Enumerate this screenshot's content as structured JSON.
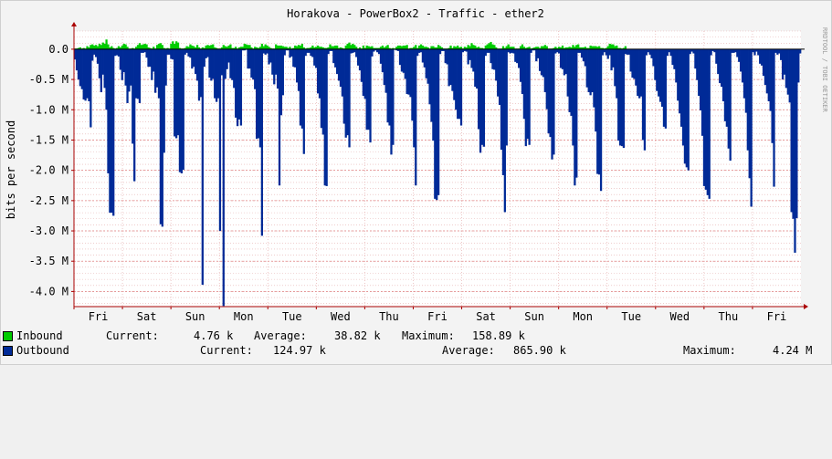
{
  "chart_data": {
    "type": "area",
    "title": "Horakova - PowerBox2 - Traffic - ether2",
    "ylabel": "bits per second",
    "watermark": "RRDTOOL / TOBI OETIKER",
    "ylim": [
      -4250000,
      300000
    ],
    "yticks": [
      {
        "value": 0,
        "label": "0.0"
      },
      {
        "value": -500000,
        "label": "-0.5 M"
      },
      {
        "value": -1000000,
        "label": "-1.0 M"
      },
      {
        "value": -1500000,
        "label": "-1.5 M"
      },
      {
        "value": -2000000,
        "label": "-2.0 M"
      },
      {
        "value": -2500000,
        "label": "-2.5 M"
      },
      {
        "value": -3000000,
        "label": "-3.0 M"
      },
      {
        "value": -3500000,
        "label": "-3.5 M"
      },
      {
        "value": -4000000,
        "label": "-4.0 M"
      }
    ],
    "x_range_days": [
      0,
      15
    ],
    "xticks": [
      {
        "day": 0.5,
        "label": "Fri"
      },
      {
        "day": 1.5,
        "label": "Sat"
      },
      {
        "day": 2.5,
        "label": "Sun"
      },
      {
        "day": 3.5,
        "label": "Mon"
      },
      {
        "day": 4.5,
        "label": "Tue"
      },
      {
        "day": 5.5,
        "label": "Wed"
      },
      {
        "day": 6.5,
        "label": "Thu"
      },
      {
        "day": 7.5,
        "label": "Fri"
      },
      {
        "day": 8.5,
        "label": "Sat"
      },
      {
        "day": 9.5,
        "label": "Sun"
      },
      {
        "day": 10.5,
        "label": "Mon"
      },
      {
        "day": 11.5,
        "label": "Tue"
      },
      {
        "day": 12.5,
        "label": "Wed"
      },
      {
        "day": 13.5,
        "label": "Thu"
      },
      {
        "day": 14.5,
        "label": "Fri"
      }
    ],
    "colors": {
      "inbound": "#00cc00",
      "outbound": "#002a97",
      "grid": "#e6b0b0",
      "axis": "#aa0000"
    },
    "series": [
      {
        "name": "Inbound",
        "values": [
          0.01,
          0.01,
          0.02,
          0.03,
          0.01,
          0.02,
          0.01,
          0.05,
          0.03,
          0.07,
          0.08,
          0.06,
          0.07,
          0.05,
          0.09,
          0.07,
          0.11,
          0.09,
          0.16,
          0.08,
          0.03,
          0.05,
          0.02,
          0.01,
          0.02,
          0.05,
          0.03,
          0.06,
          0.09,
          0.08,
          0.04,
          0.01,
          0.01,
          0.02,
          0.01,
          0.04,
          0.07,
          0.1,
          0.07,
          0.08,
          0.09,
          0.08,
          0.03,
          0.02,
          0.01,
          0.04,
          0.01,
          0.07,
          0.09,
          0.1,
          0.07,
          0.02,
          0.01,
          0.02,
          0.01,
          0.09,
          0.13,
          0.09,
          0.13,
          0.11,
          0.02,
          0.01,
          0.01,
          0.02,
          0.05,
          0.04,
          0.08,
          0.06,
          0.05,
          0.03,
          0.07,
          0.03,
          0.01,
          0.03,
          0.02,
          0.06,
          0.07,
          0.06,
          0.07,
          0.08,
          0.03,
          0.02,
          0.01,
          0.01,
          0.03,
          0.07,
          0.05,
          0.04,
          0.06,
          0.08,
          0.02,
          0.02,
          0.04,
          0.01,
          0.03,
          0.04,
          0.04,
          0.09,
          0.08,
          0.07,
          0.07,
          0.03,
          0.01,
          0.04,
          0.03,
          0.02,
          0.04,
          0.09,
          0.05,
          0.08,
          0.06,
          0.04,
          0.02,
          0.01,
          0.01,
          0.08,
          0.06,
          0.06,
          0.06,
          0.05,
          0.04,
          0.04,
          0.02,
          0.04,
          0.01,
          0.02,
          0.06,
          0.05,
          0.07,
          0.06,
          0.09,
          0.03,
          0.01,
          0.02,
          0.02,
          0.03,
          0.06,
          0.03,
          0.04,
          0.06,
          0.04,
          0.04,
          0.03,
          0.02,
          0.02,
          0.03,
          0.08,
          0.05,
          0.05,
          0.06,
          0.06,
          0.02,
          0.03,
          0.02,
          0.01,
          0.06,
          0.09,
          0.11,
          0.07,
          0.09,
          0.07,
          0.04,
          0.01,
          0.03,
          0.01,
          0.06,
          0.02,
          0.06,
          0.05,
          0.04,
          0.05,
          0.02,
          0.02,
          0.02,
          0.02,
          0.04,
          0.06,
          0.03,
          0.05,
          0.07,
          0.02,
          0.01,
          0.02,
          0.01,
          0.04,
          0.06,
          0.06,
          0.05,
          0.06,
          0.06,
          0.07,
          0.01,
          0.02,
          0.02,
          0.04,
          0.07,
          0.02,
          0.06,
          0.08,
          0.06,
          0.04,
          0.04,
          0.03,
          0.01,
          0.05,
          0.05,
          0.03,
          0.03,
          0.07,
          0.05,
          0.03,
          0.01,
          0.01,
          0.01,
          0.02,
          0.06,
          0.02,
          0.05,
          0.04,
          0.06,
          0.03,
          0.04,
          0.01,
          0.04,
          0.03,
          0.07,
          0.05,
          0.1,
          0.07,
          0.06,
          0.03,
          0.04,
          0.02,
          0.02,
          0.01,
          0.06,
          0.08,
          0.1,
          0.12,
          0.08,
          0.07,
          0.03,
          0.01,
          0.01,
          0.01,
          0.05,
          0.02,
          0.05,
          0.08,
          0.04,
          0.04,
          0.04,
          0.01,
          0.01,
          0.01,
          0.05,
          0.08,
          0.04,
          0.02,
          0.03,
          0.04,
          0.01,
          0.02,
          0.03,
          0.04,
          0.04,
          0.02,
          0.05,
          0.05,
          0.07,
          0.05,
          0.01,
          0.01,
          0.01,
          0.02,
          0.04,
          0.02,
          0.04,
          0.03,
          0.06,
          0.02,
          0.03,
          0.03,
          0.04,
          0.03,
          0.07,
          0.04,
          0.07,
          0.08,
          0.03,
          0.03,
          0.03,
          0.04,
          0.02,
          0.02,
          0.06,
          0.05,
          0.05,
          0.05,
          0.04,
          0.05,
          0.02,
          0.02,
          0.01,
          0.02,
          0.05,
          0.09,
          0.08,
          0.08,
          0.05,
          0.06,
          0.02,
          0.02,
          0.01,
          0.02,
          0.05
        ]
      },
      {
        "name": "Outbound",
        "values": [
          0.17,
          0.35,
          0.5,
          0.61,
          0.66,
          0.83,
          0.85,
          0.81,
          0.86,
          1.29,
          0.19,
          0.09,
          0.13,
          0.24,
          0.48,
          0.71,
          0.42,
          0.64,
          1.0,
          2.05,
          2.7,
          2.7,
          2.75,
          0.11,
          0.1,
          0.12,
          0.34,
          0.51,
          0.38,
          0.6,
          0.89,
          0.7,
          0.6,
          1.56,
          2.18,
          0.81,
          0.82,
          0.89,
          0.06,
          0.06,
          0.05,
          0.14,
          0.29,
          0.29,
          0.51,
          0.37,
          0.72,
          0.63,
          0.81,
          2.89,
          2.93,
          1.71,
          0.6,
          0.09,
          0.09,
          0.16,
          0.17,
          1.44,
          1.47,
          1.42,
          2.03,
          2.05,
          1.99,
          0.09,
          0.06,
          0.12,
          0.14,
          0.32,
          0.29,
          0.41,
          0.52,
          0.85,
          0.79,
          3.89,
          0.29,
          0.15,
          0.13,
          0.47,
          0.52,
          0.49,
          0.81,
          0.87,
          0.81,
          3.0,
          0.43,
          4.24,
          0.49,
          0.33,
          0.22,
          0.48,
          0.51,
          0.64,
          1.13,
          1.27,
          1.16,
          1.26,
          0.02,
          0.02,
          0.01,
          0.32,
          0.32,
          0.47,
          0.5,
          0.66,
          1.48,
          1.47,
          1.62,
          3.08,
          0.07,
          0.09,
          0.07,
          0.25,
          0.22,
          0.42,
          0.58,
          0.42,
          0.65,
          2.25,
          1.09,
          0.76,
          0.1,
          0.02,
          0.02,
          0.14,
          0.12,
          0.29,
          0.3,
          0.55,
          0.69,
          1.26,
          1.31,
          1.73,
          0.11,
          0.06,
          0.06,
          0.11,
          0.13,
          0.27,
          0.31,
          0.73,
          0.81,
          1.3,
          1.41,
          2.25,
          2.26,
          0.08,
          0.03,
          0.03,
          0.23,
          0.3,
          0.41,
          0.52,
          0.62,
          0.78,
          1.23,
          1.46,
          1.42,
          1.62,
          0.07,
          0.06,
          0.05,
          0.13,
          0.27,
          0.35,
          0.54,
          0.77,
          0.82,
          1.33,
          1.33,
          1.54,
          0.12,
          0.04,
          0.02,
          0.05,
          0.08,
          0.24,
          0.38,
          0.59,
          0.72,
          1.21,
          1.26,
          1.74,
          1.58,
          0.01,
          0.02,
          0.03,
          0.26,
          0.37,
          0.39,
          0.49,
          0.74,
          0.75,
          0.79,
          1.18,
          1.62,
          2.25,
          0.11,
          0.06,
          0.05,
          0.22,
          0.3,
          0.48,
          0.57,
          0.91,
          1.2,
          1.51,
          2.47,
          2.49,
          2.41,
          0.08,
          0.03,
          0.03,
          0.23,
          0.25,
          0.61,
          0.59,
          0.69,
          0.84,
          1.0,
          1.15,
          1.15,
          1.26,
          0.05,
          0.03,
          0.04,
          0.25,
          0.18,
          0.31,
          0.37,
          0.62,
          0.65,
          1.32,
          1.71,
          1.58,
          1.61,
          0.11,
          0.06,
          0.06,
          0.23,
          0.33,
          0.34,
          0.52,
          0.78,
          0.92,
          1.66,
          2.08,
          2.69,
          1.59,
          0.05,
          0.07,
          0.06,
          0.07,
          0.21,
          0.23,
          0.31,
          0.54,
          0.74,
          1.15,
          1.6,
          1.48,
          1.58,
          0.06,
          0.02,
          0.02,
          0.2,
          0.15,
          0.36,
          0.43,
          0.46,
          0.71,
          0.99,
          1.39,
          1.45,
          1.82,
          1.74,
          0.07,
          0.05,
          0.07,
          0.31,
          0.33,
          0.43,
          0.41,
          0.78,
          1.04,
          1.1,
          1.59,
          2.25,
          2.12,
          0.06,
          0.06,
          0.14,
          0.2,
          0.28,
          0.63,
          0.71,
          0.76,
          0.71,
          0.96,
          1.36,
          2.06,
          2.07,
          2.34,
          0.1,
          0.05,
          0.1,
          0.16,
          0.1,
          0.35,
          0.3,
          0.61,
          0.81,
          1.51,
          1.59,
          1.6,
          1.63,
          0.08,
          0.09,
          0.09,
          0.37,
          0.47,
          0.49,
          0.6,
          0.77,
          0.81,
          0.78,
          1.5,
          1.67,
          0.1,
          0.05,
          0.09,
          0.15,
          0.28,
          0.51,
          0.69,
          0.78,
          0.87,
          0.95,
          1.28,
          1.31,
          0.11,
          0.05,
          0.11,
          0.26,
          0.33,
          0.55,
          0.85,
          1.06,
          1.28,
          1.59,
          1.89,
          1.95,
          2.0,
          0.08,
          0.04,
          0.07,
          0.32,
          0.51,
          0.77,
          1.01,
          1.43,
          2.26,
          2.32,
          2.41,
          2.47,
          0.1,
          0.03,
          0.05,
          0.24,
          0.41,
          0.56,
          0.62,
          0.86,
          1.19,
          1.28,
          1.64,
          1.84,
          0.06,
          0.06,
          0.05,
          0.13,
          0.21,
          0.37,
          0.55,
          0.81,
          1.05,
          1.67,
          2.13,
          2.6,
          0.05,
          0.1,
          0.04,
          0.1,
          0.24,
          0.27,
          0.44,
          0.59,
          0.73,
          0.86,
          1.02,
          1.55,
          2.27,
          0.06,
          0.09,
          0.07,
          0.18,
          0.5,
          0.42,
          0.64,
          0.75,
          0.88,
          2.69,
          2.8,
          3.36,
          2.79,
          0.55,
          0.07
        ]
      }
    ]
  },
  "legend": {
    "inbound": {
      "label": "Inbound",
      "current_label": "Current:",
      "current": "4.76 k",
      "average_label": "Average:",
      "average": "38.82 k",
      "maximum_label": "Maximum:",
      "maximum": "158.89 k",
      "color": "#00cc00"
    },
    "outbound": {
      "label": "Outbound",
      "current_label": "Current:",
      "current": "124.97 k",
      "average_label": "Average:",
      "average": "865.90 k",
      "maximum_label": "Maximum:",
      "maximum": "4.24 M",
      "color": "#002a97"
    }
  }
}
